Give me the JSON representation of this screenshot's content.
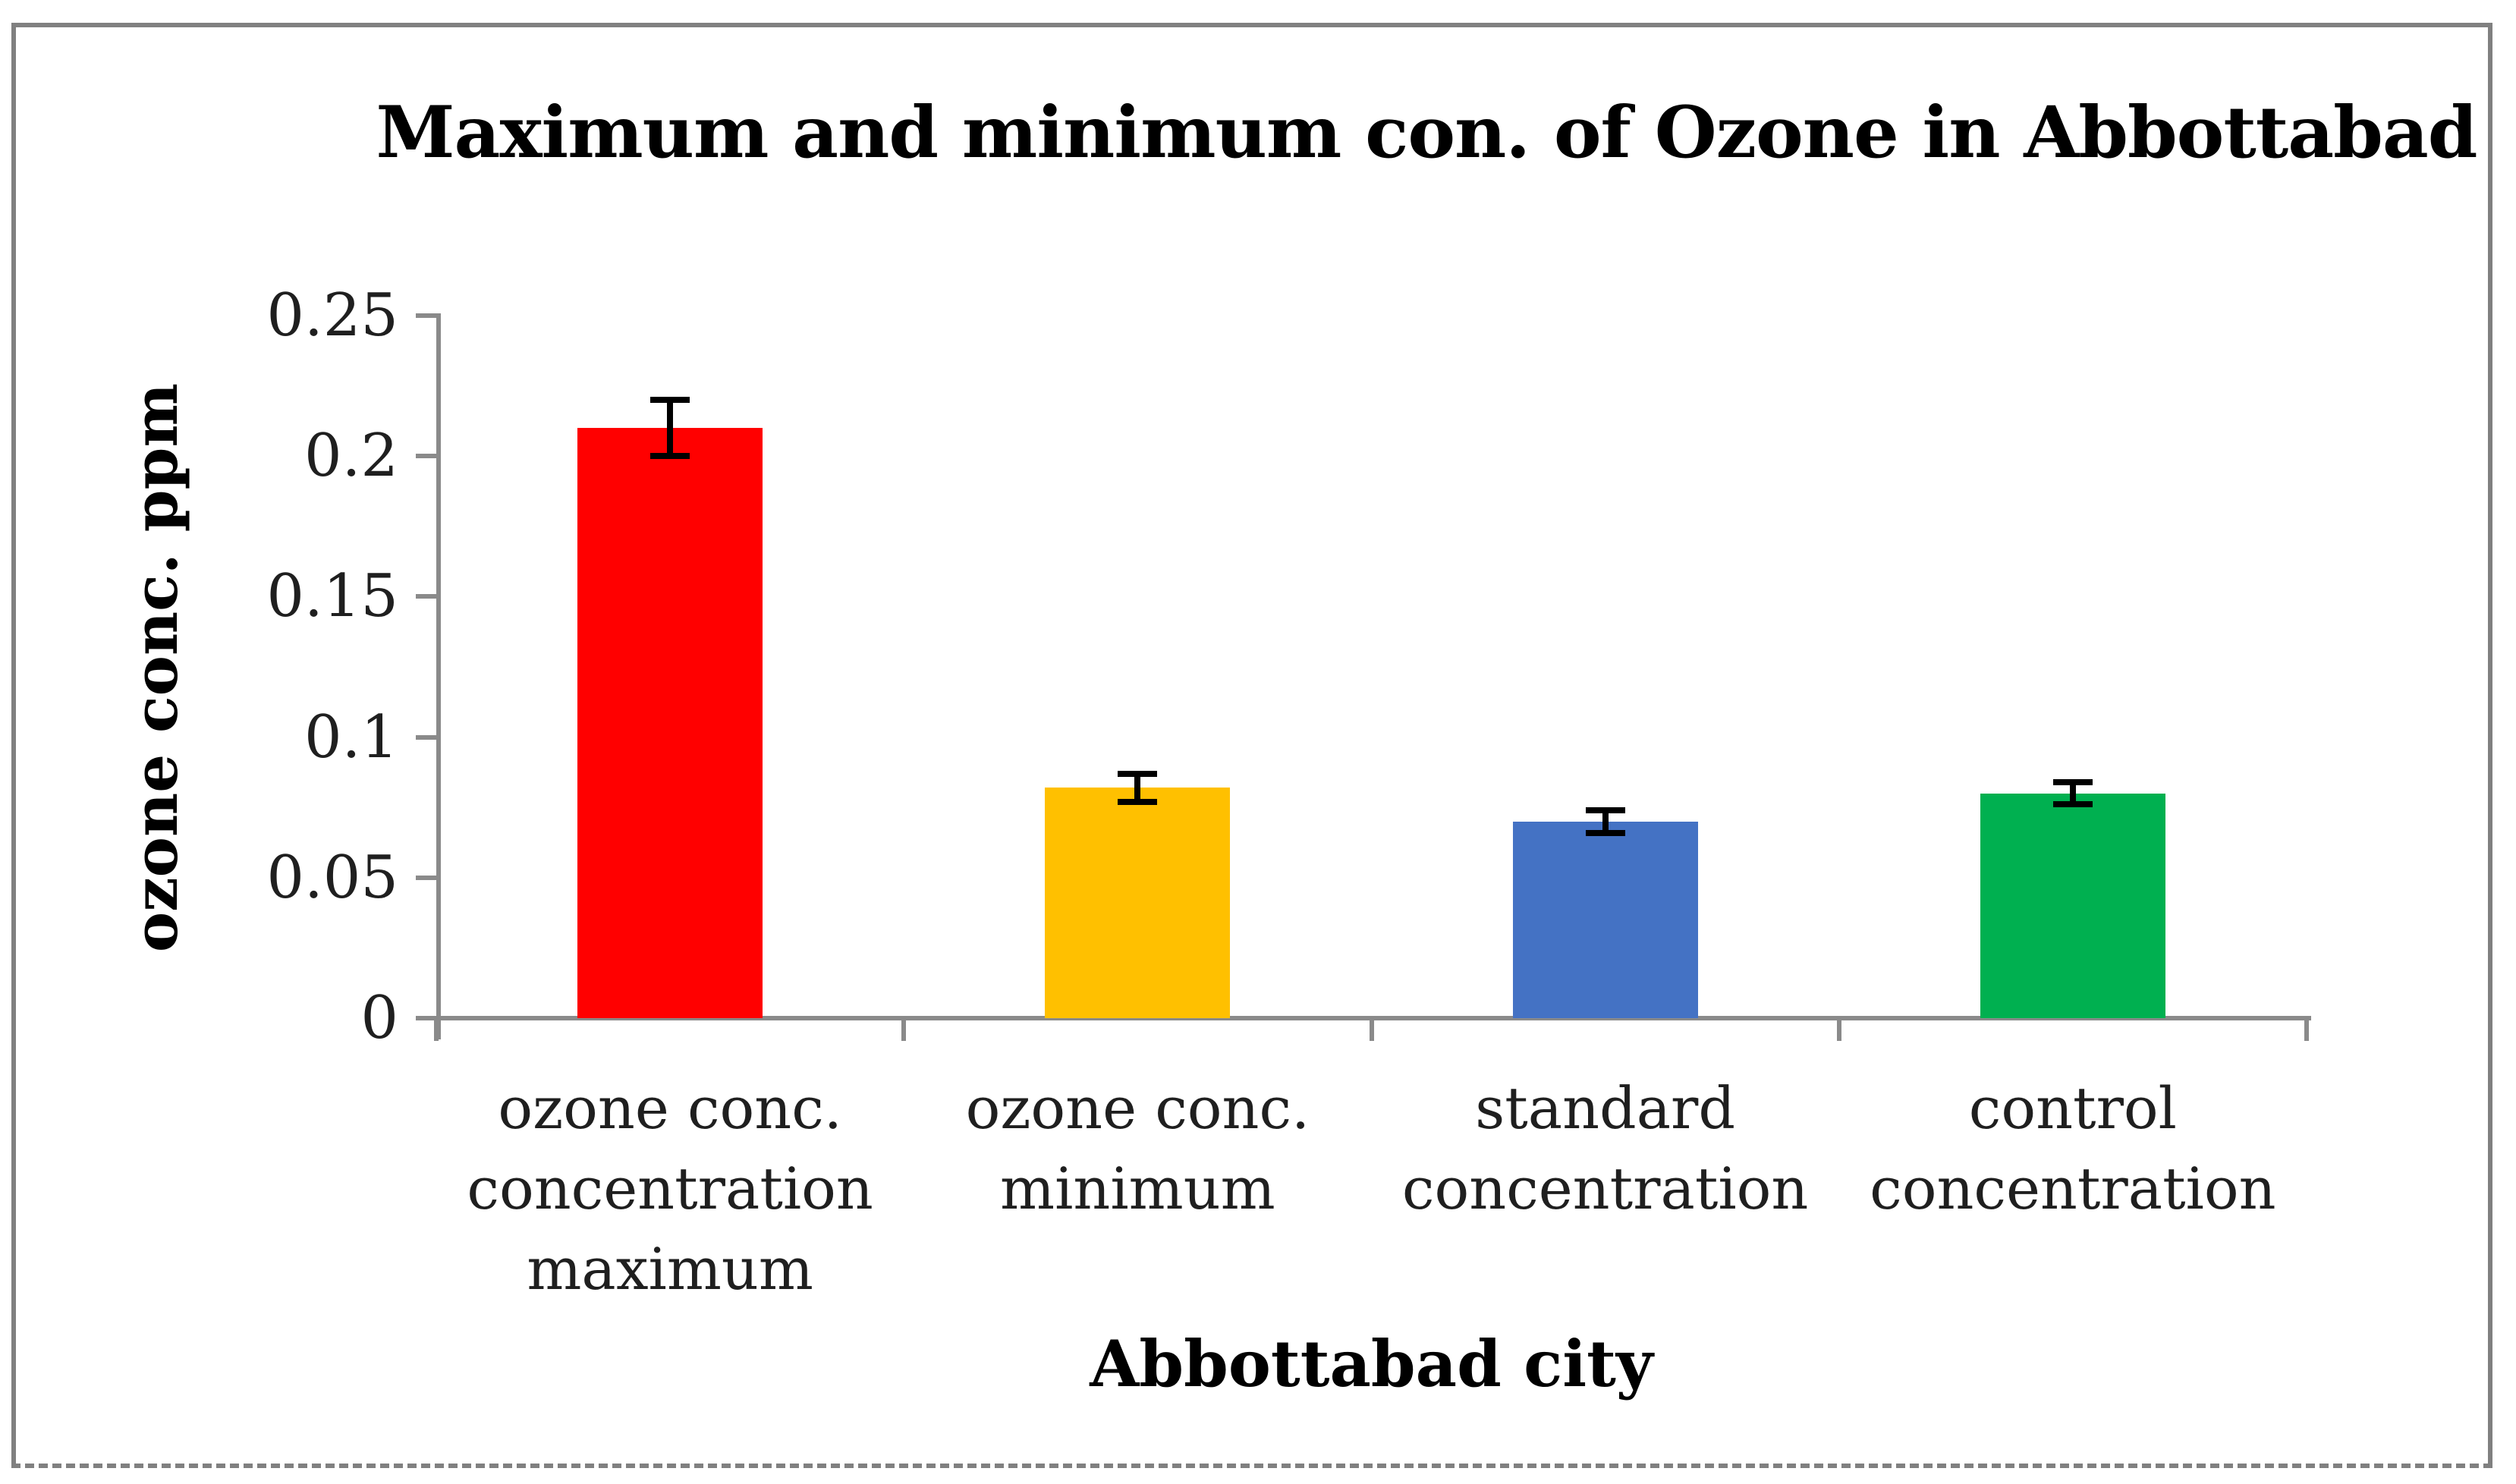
{
  "frame": {
    "border_color": "#808080"
  },
  "chart_data": {
    "type": "bar",
    "title": "Maximum and minimum con. of Ozone in Abbottabad",
    "xlabel": "Abbottabad city",
    "ylabel": "ozone conc. ppm",
    "categories": [
      [
        "ozone conc.",
        "concentration",
        "maximum"
      ],
      [
        "ozone conc.",
        "minimum"
      ],
      [
        "standard",
        "concentration"
      ],
      [
        "control",
        "concentration"
      ]
    ],
    "values": [
      0.21,
      0.082,
      0.07,
      0.08
    ],
    "errors": [
      0.01,
      0.005,
      0.004,
      0.004
    ],
    "bar_colors": [
      "#FF0000",
      "#FFC000",
      "#4472C4",
      "#00B050"
    ],
    "ylim": [
      0,
      0.25
    ],
    "yticks": [
      0,
      0.05,
      0.1,
      0.15,
      0.2,
      0.25
    ],
    "ytick_labels": [
      "0",
      "0.05",
      "0.1",
      "0.15",
      "0.2",
      "0.25"
    ],
    "axis_color": "#8a8a8a",
    "error_bar_color": "#000000",
    "grid": false,
    "legend": false
  }
}
